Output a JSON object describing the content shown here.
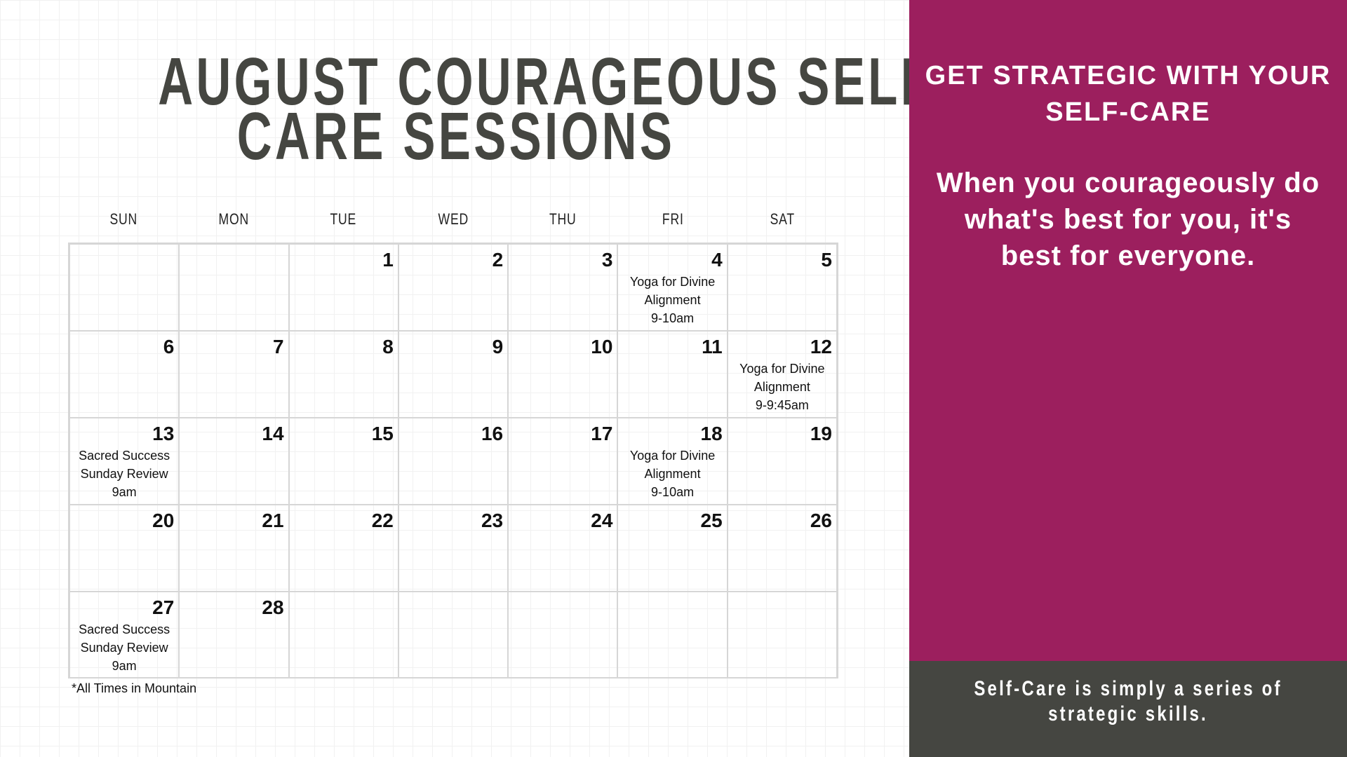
{
  "title": {
    "line1": "AUGUST COURAGEOUS SELF-",
    "line2": "CARE SESSIONS"
  },
  "weekdays": [
    "SUN",
    "MON",
    "TUE",
    "WED",
    "THU",
    "FRI",
    "SAT"
  ],
  "cells": [
    {
      "day": "",
      "event": ""
    },
    {
      "day": "",
      "event": ""
    },
    {
      "day": "1",
      "event": ""
    },
    {
      "day": "2",
      "event": ""
    },
    {
      "day": "3",
      "event": ""
    },
    {
      "day": "4",
      "event": "Yoga for Divine\nAlignment\n9-10am"
    },
    {
      "day": "5",
      "event": ""
    },
    {
      "day": "6",
      "event": ""
    },
    {
      "day": "7",
      "event": ""
    },
    {
      "day": "8",
      "event": ""
    },
    {
      "day": "9",
      "event": ""
    },
    {
      "day": "10",
      "event": ""
    },
    {
      "day": "11",
      "event": ""
    },
    {
      "day": "12",
      "event": "Yoga for Divine\nAlignment\n9-9:45am"
    },
    {
      "day": "13",
      "event": "Sacred Success\nSunday Review\n9am"
    },
    {
      "day": "14",
      "event": ""
    },
    {
      "day": "15",
      "event": ""
    },
    {
      "day": "16",
      "event": ""
    },
    {
      "day": "17",
      "event": ""
    },
    {
      "day": "18",
      "event": "Yoga for Divine\nAlignment\n9-10am"
    },
    {
      "day": "19",
      "event": ""
    },
    {
      "day": "20",
      "event": ""
    },
    {
      "day": "21",
      "event": ""
    },
    {
      "day": "22",
      "event": ""
    },
    {
      "day": "23",
      "event": ""
    },
    {
      "day": "24",
      "event": ""
    },
    {
      "day": "25",
      "event": ""
    },
    {
      "day": "26",
      "event": ""
    },
    {
      "day": "27",
      "event": "Sacred Success\nSunday Review\n9am"
    },
    {
      "day": "28",
      "event": ""
    },
    {
      "day": "",
      "event": ""
    },
    {
      "day": "",
      "event": ""
    },
    {
      "day": "",
      "event": ""
    },
    {
      "day": "",
      "event": ""
    },
    {
      "day": "",
      "event": ""
    }
  ],
  "footnote": "*All Times in Mountain",
  "panel": {
    "heading": "GET STRATEGIC WITH YOUR SELF-CARE",
    "quote": "When you courageously do what's best for you, it's best for everyone.",
    "footer": "Self-Care is simply a series of strategic skills."
  },
  "colors": {
    "accent": "#9c1f5e",
    "dark": "#454641"
  }
}
